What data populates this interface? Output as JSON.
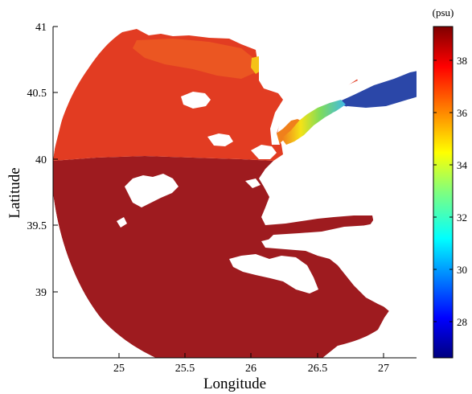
{
  "map": {
    "x_label": "Longitude",
    "y_label": "Latitude",
    "x_ticks": [
      "25",
      "25.5",
      "26",
      "26.5",
      "27"
    ],
    "y_ticks": [
      "41",
      "40.5",
      "40",
      "39.5",
      "39"
    ],
    "x_range": [
      24.5,
      27.25
    ],
    "y_range": [
      38.5,
      41.0
    ],
    "variable": "salinity"
  },
  "colorbar": {
    "unit": "(psu)",
    "ticks": [
      "38",
      "36",
      "34",
      "32",
      "30",
      "28"
    ],
    "range": [
      26.6,
      39.4
    ],
    "colormap": "jet"
  },
  "colors": {
    "high_salinity": "#9e1b1f",
    "medium_high": "#e23c22",
    "medium": "#f07a1c",
    "mid": "#f5e216",
    "low_mid": "#5fd1e4",
    "low": "#2b47a8"
  }
}
